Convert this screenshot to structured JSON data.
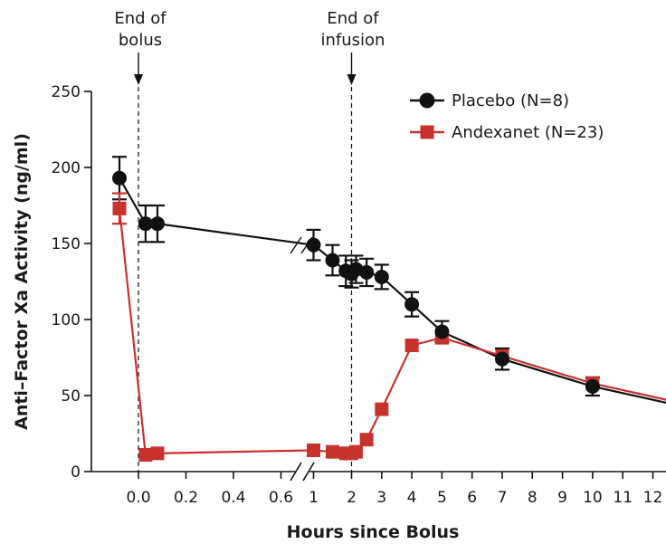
{
  "chart_data": {
    "type": "line",
    "xlabel": "Hours since Bolus",
    "ylabel": "Anti–Factor Xa Activity (ng/ml)",
    "ylim": [
      0,
      250
    ],
    "yticks": [
      0,
      50,
      100,
      150,
      200,
      250
    ],
    "xticks": [
      {
        "value": 0.0,
        "label": "0.0"
      },
      {
        "value": 0.2,
        "label": "0.2"
      },
      {
        "value": 0.4,
        "label": "0.4"
      },
      {
        "value": 0.6,
        "label": "0.6"
      },
      {
        "value": 1,
        "label": "1"
      },
      {
        "value": 2,
        "label": "2"
      },
      {
        "value": 3,
        "label": "3"
      },
      {
        "value": 4,
        "label": "4"
      },
      {
        "value": 5,
        "label": "5"
      },
      {
        "value": 6,
        "label": "6"
      },
      {
        "value": 7,
        "label": "7"
      },
      {
        "value": 8,
        "label": "8"
      },
      {
        "value": 9,
        "label": "9"
      },
      {
        "value": 10,
        "label": "10"
      },
      {
        "value": 11,
        "label": "11"
      },
      {
        "value": 12,
        "label": "12"
      }
    ],
    "axis_break": "between 0.6 and 1 hours",
    "grid": false,
    "legend_position": "top-right",
    "annotations": [
      {
        "text_lines": [
          "End of",
          "bolus"
        ],
        "x": 0.0
      },
      {
        "text_lines": [
          "End of",
          "infusion"
        ],
        "x": 2
      }
    ],
    "series": [
      {
        "name": "Placebo (N=8)",
        "color": "#111111",
        "marker": "circle",
        "points": [
          {
            "x": -0.08,
            "y": 193,
            "err": 14
          },
          {
            "x": 0.03,
            "y": 163,
            "err": 12
          },
          {
            "x": 0.08,
            "y": 163,
            "err": 12
          },
          {
            "x": 1.0,
            "y": 149,
            "err": 10
          },
          {
            "x": 1.5,
            "y": 139,
            "err": 10
          },
          {
            "x": 1.85,
            "y": 132,
            "err": 10
          },
          {
            "x": 2.0,
            "y": 130,
            "err": 9
          },
          {
            "x": 2.15,
            "y": 133,
            "err": 9
          },
          {
            "x": 2.5,
            "y": 131,
            "err": 9
          },
          {
            "x": 3.0,
            "y": 128,
            "err": 8
          },
          {
            "x": 4.0,
            "y": 110,
            "err": 8
          },
          {
            "x": 5.0,
            "y": 92,
            "err": 7
          },
          {
            "x": 7.0,
            "y": 74,
            "err": 7
          },
          {
            "x": 10.0,
            "y": 56,
            "err": 6
          },
          {
            "x": 12.5,
            "y": 45,
            "err": 0
          }
        ]
      },
      {
        "name": "Andexanet (N=23)",
        "color": "#c8322d",
        "marker": "square",
        "points": [
          {
            "x": -0.08,
            "y": 173,
            "err": 10
          },
          {
            "x": 0.03,
            "y": 11,
            "err": 0
          },
          {
            "x": 0.08,
            "y": 12,
            "err": 0
          },
          {
            "x": 1.0,
            "y": 14,
            "err": 0
          },
          {
            "x": 1.5,
            "y": 13,
            "err": 0
          },
          {
            "x": 1.85,
            "y": 12,
            "err": 0
          },
          {
            "x": 2.0,
            "y": 12,
            "err": 0
          },
          {
            "x": 2.15,
            "y": 13,
            "err": 0
          },
          {
            "x": 2.5,
            "y": 21,
            "err": 0
          },
          {
            "x": 3.0,
            "y": 41,
            "err": 0
          },
          {
            "x": 4.0,
            "y": 83,
            "err": 0
          },
          {
            "x": 5.0,
            "y": 88,
            "err": 0
          },
          {
            "x": 7.0,
            "y": 76,
            "err": 0
          },
          {
            "x": 10.0,
            "y": 58,
            "err": 0
          },
          {
            "x": 12.5,
            "y": 47,
            "err": 0
          }
        ]
      }
    ]
  }
}
